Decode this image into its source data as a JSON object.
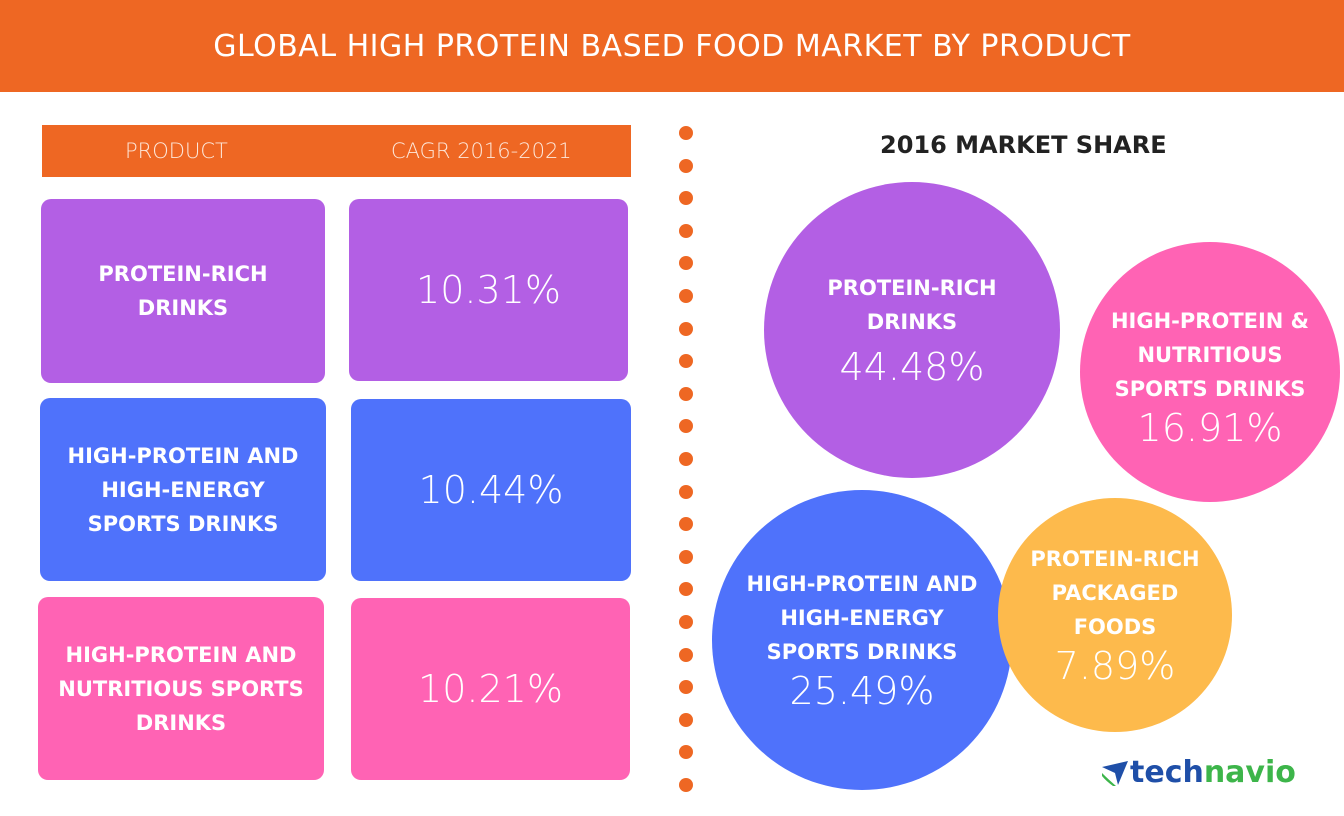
{
  "title": "GLOBAL HIGH PROTEIN BASED FOOD MARKET BY PRODUCT",
  "table": {
    "headers": [
      "PRODUCT",
      "CAGR 2016-2021"
    ],
    "rows": [
      {
        "product": "PROTEIN-RICH DRINKS",
        "cagr": "10.31%",
        "color": "#B35FE4"
      },
      {
        "product": "HIGH-PROTEIN AND HIGH-ENERGY SPORTS DRINKS",
        "cagr": "10.44%",
        "color": "#4F72FB"
      },
      {
        "product": "HIGH-PROTEIN AND NUTRITIOUS SPORTS DRINKS",
        "cagr": "10.21%",
        "color": "#FF63B4"
      }
    ]
  },
  "chart_data": {
    "type": "bubble",
    "title": "2016 MARKET SHARE",
    "categories": [
      "PROTEIN-RICH DRINKS",
      "HIGH-PROTEIN & NUTRITIOUS SPORTS DRINKS",
      "HIGH-PROTEIN AND HIGH-ENERGY SPORTS DRINKS",
      "PROTEIN-RICH PACKAGED FOODS"
    ],
    "values": [
      44.48,
      16.91,
      25.49,
      7.89
    ],
    "labels": [
      "44.48%",
      "16.91%",
      "25.49%",
      "7.89%"
    ],
    "colors": [
      "#B35FE4",
      "#FF63B4",
      "#4F72FB",
      "#FDBA4C"
    ]
  },
  "logo": {
    "part1": "tech",
    "part2": "navio"
  }
}
